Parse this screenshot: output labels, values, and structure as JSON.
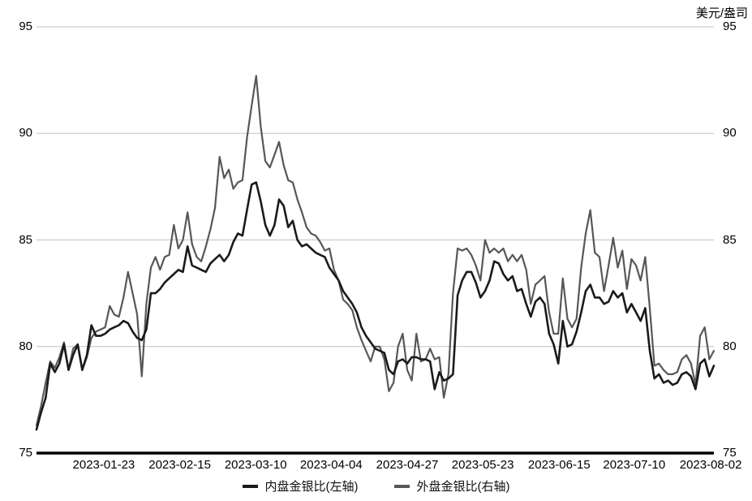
{
  "unit_label": "美元/盎司",
  "chart_data": {
    "type": "line",
    "title": "",
    "grid": true,
    "legend_position": "bottom",
    "right_axis_unit": "美元/盎司",
    "x_tick_labels": [
      "2023-01-23",
      "2023-02-15",
      "2023-03-10",
      "2023-04-04",
      "2023-04-27",
      "2023-05-23",
      "2023-06-15",
      "2023-07-10",
      "2023-08-02"
    ],
    "x_tick_indices": [
      14.7,
      31.3,
      47.9,
      64.4,
      81.0,
      97.5,
      114.2,
      130.6,
      147.3
    ],
    "y_ticks_left": [
      95,
      90,
      85,
      80,
      75
    ],
    "y_ticks_right": [
      95,
      90,
      85,
      80,
      75
    ],
    "ylim_left": [
      75,
      95
    ],
    "ylim_right": [
      75,
      95
    ],
    "colors": {
      "inner_series": "#1a1a1a",
      "outer_series": "#575757",
      "gridline": "#c2c2c2",
      "axis": "#000000"
    },
    "series": [
      {
        "name": "外盘金银比(右轴)",
        "axis": "right",
        "color": "#575757",
        "stroke_width": 2.2,
        "values": [
          76.3,
          77.2,
          78.3,
          79.3,
          79.0,
          79.5,
          80.2,
          78.9,
          79.9,
          80.1,
          78.9,
          79.5,
          80.4,
          80.7,
          80.8,
          80.9,
          81.9,
          81.5,
          81.4,
          82.3,
          83.5,
          82.5,
          81.5,
          78.6,
          82.0,
          83.7,
          84.2,
          83.6,
          84.2,
          84.3,
          85.7,
          84.6,
          85.0,
          86.3,
          84.8,
          84.2,
          84.0,
          84.7,
          85.5,
          86.5,
          88.9,
          87.9,
          88.3,
          87.4,
          87.7,
          87.8,
          89.8,
          91.3,
          92.7,
          90.3,
          88.7,
          88.4,
          89.0,
          89.6,
          88.5,
          87.8,
          87.7,
          86.9,
          86.3,
          85.6,
          85.3,
          85.2,
          84.9,
          84.5,
          84.6,
          83.6,
          83.1,
          82.2,
          82.0,
          81.7,
          80.9,
          80.3,
          79.8,
          79.3,
          80.0,
          80.0,
          79.4,
          77.9,
          78.3,
          80.0,
          80.6,
          78.9,
          78.4,
          80.6,
          79.3,
          79.4,
          79.9,
          79.4,
          79.5,
          77.6,
          78.7,
          82.5,
          84.6,
          84.5,
          84.6,
          84.3,
          83.8,
          83.1,
          85.0,
          84.4,
          84.6,
          84.4,
          84.6,
          84.0,
          84.3,
          84.0,
          84.3,
          83.6,
          82.0,
          82.9,
          83.1,
          83.3,
          81.6,
          80.6,
          80.6,
          83.2,
          81.3,
          80.9,
          81.3,
          83.7,
          85.3,
          86.4,
          84.4,
          84.2,
          82.6,
          83.8,
          85.1,
          83.7,
          84.5,
          82.7,
          84.1,
          83.8,
          83.1,
          84.2,
          81.8,
          79.1,
          79.2,
          78.9,
          78.7,
          78.7,
          78.8,
          79.4,
          79.6,
          79.2,
          78.2,
          80.5,
          80.9,
          79.4,
          79.8
        ]
      },
      {
        "name": "内盘金银比(左轴)",
        "axis": "left",
        "color": "#1a1a1a",
        "stroke_width": 2.6,
        "values": [
          76.1,
          76.9,
          77.6,
          79.2,
          78.8,
          79.2,
          80.1,
          78.9,
          79.6,
          80.1,
          78.9,
          79.6,
          81.0,
          80.5,
          80.5,
          80.6,
          80.8,
          80.9,
          81.0,
          81.2,
          81.1,
          80.7,
          80.4,
          80.3,
          80.8,
          82.5,
          82.5,
          82.7,
          83.0,
          83.2,
          83.4,
          83.6,
          83.5,
          84.7,
          83.8,
          83.7,
          83.6,
          83.5,
          83.9,
          84.1,
          84.3,
          84.0,
          84.3,
          84.9,
          85.3,
          85.2,
          86.4,
          87.6,
          87.7,
          86.8,
          85.7,
          85.2,
          85.7,
          86.9,
          86.6,
          85.6,
          85.9,
          85.0,
          84.7,
          84.8,
          84.6,
          84.4,
          84.3,
          84.2,
          83.7,
          83.4,
          83.1,
          82.6,
          82.3,
          82.0,
          81.6,
          80.9,
          80.5,
          80.2,
          79.9,
          79.8,
          79.7,
          78.9,
          78.7,
          79.3,
          79.4,
          79.2,
          79.5,
          79.5,
          79.4,
          79.4,
          79.3,
          78.0,
          78.8,
          78.4,
          78.5,
          78.7,
          82.4,
          83.1,
          83.5,
          83.5,
          83.0,
          82.3,
          82.6,
          83.1,
          84.0,
          83.9,
          83.4,
          83.1,
          83.3,
          82.6,
          82.7,
          82.0,
          81.4,
          82.1,
          82.3,
          82.0,
          80.6,
          80.1,
          79.2,
          81.2,
          80.0,
          80.1,
          80.7,
          81.6,
          82.6,
          82.9,
          82.3,
          82.3,
          82.0,
          82.1,
          82.6,
          82.3,
          82.5,
          81.6,
          82.0,
          81.6,
          81.2,
          81.8,
          79.8,
          78.5,
          78.7,
          78.3,
          78.4,
          78.2,
          78.3,
          78.7,
          78.8,
          78.6,
          78.0,
          79.2,
          79.4,
          78.6,
          79.1
        ]
      }
    ]
  },
  "legend": {
    "inner_label": "内盘金银比(左轴)",
    "outer_label": "外盘金银比(右轴)"
  }
}
